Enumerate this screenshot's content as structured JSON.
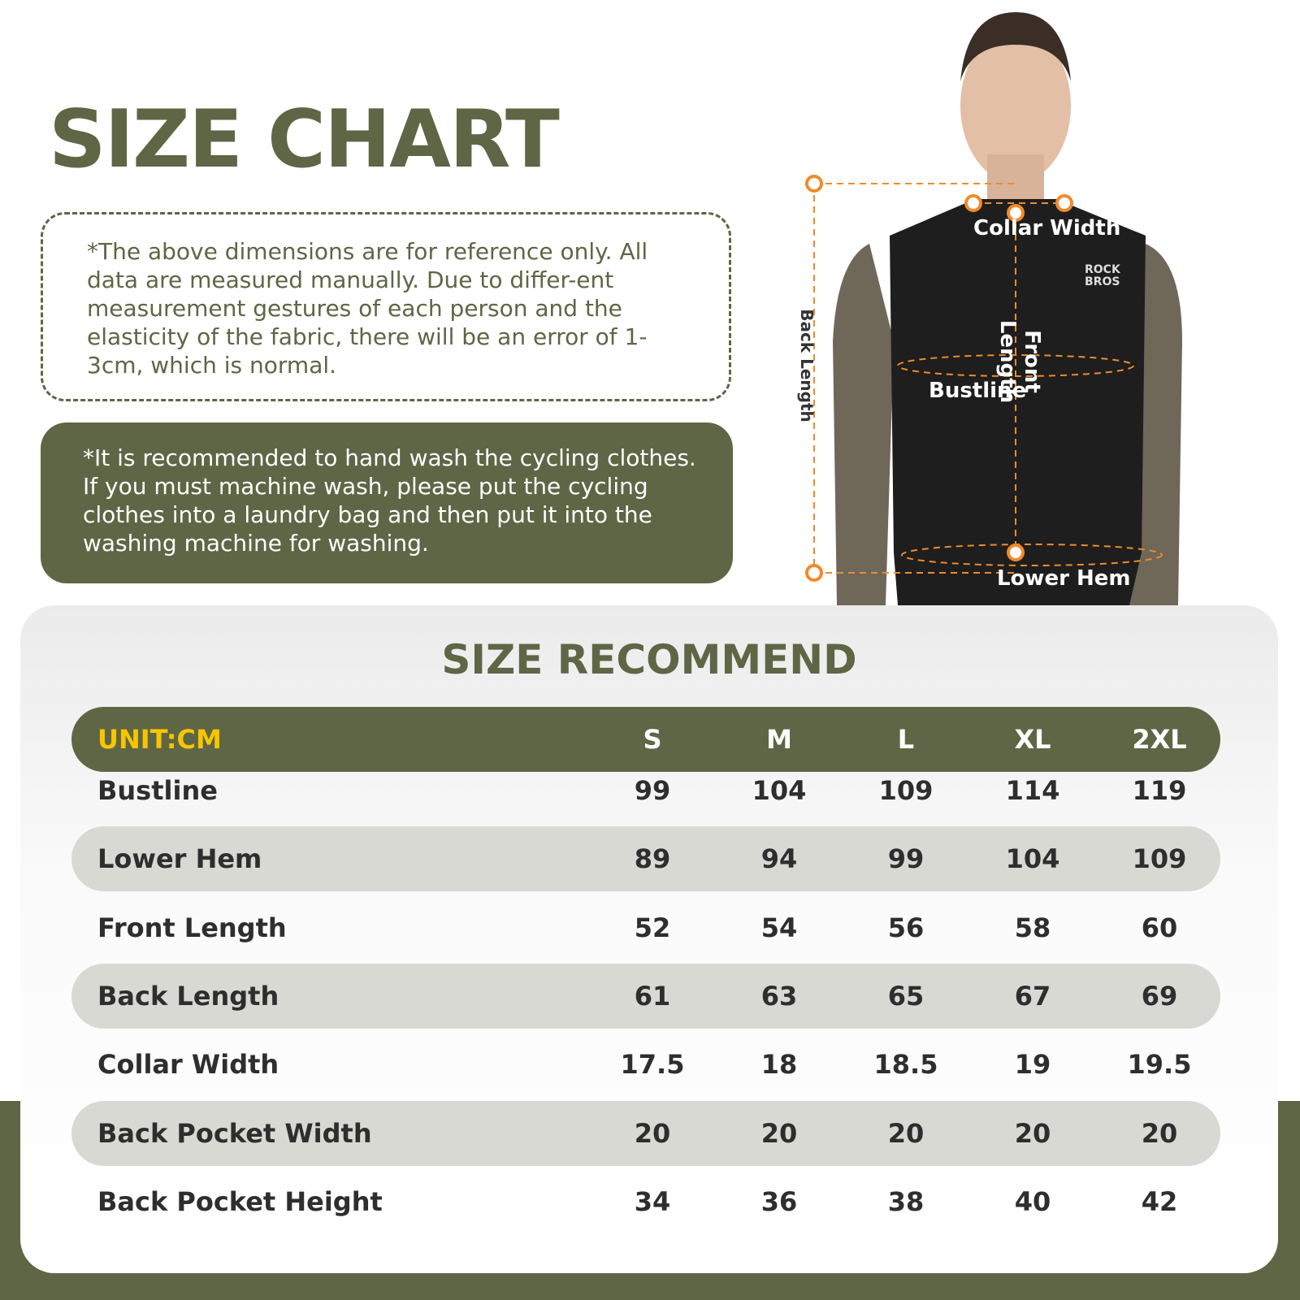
{
  "title": "SIZE CHART",
  "note_reference": "*The above dimensions are for reference only. All data are measured manually. Due to differ-ent measurement gestures of each person and the elasticity of the fabric, there will be an error of 1-3cm, which is normal.",
  "note_wash": "*It is recommended to hand wash the cycling clothes. If you must machine wash, please put the cycling clothes into a laundry bag and then put it into the washing machine for washing.",
  "figure": {
    "collar_width": "Collar Width",
    "front_length": "Front Length",
    "back_length": "Back Length",
    "bustline": "Bustline",
    "lower_hem": "Lower Hem",
    "logo": "ROCK BROS",
    "accent_color": "#f08a2c"
  },
  "table": {
    "title": "SIZE RECOMMEND",
    "unit": "UNIT:CM",
    "sizes": [
      "S",
      "M",
      "L",
      "XL",
      "2XL"
    ],
    "rows": [
      {
        "label": "Bustline",
        "values": [
          "99",
          "104",
          "109",
          "114",
          "119"
        ]
      },
      {
        "label": "Lower Hem",
        "values": [
          "89",
          "94",
          "99",
          "104",
          "109"
        ]
      },
      {
        "label": "Front Length",
        "values": [
          "52",
          "54",
          "56",
          "58",
          "60"
        ]
      },
      {
        "label": "Back Length",
        "values": [
          "61",
          "63",
          "65",
          "67",
          "69"
        ]
      },
      {
        "label": "Collar Width",
        "values": [
          "17.5",
          "18",
          "18.5",
          "19",
          "19.5"
        ]
      },
      {
        "label": "Back Pocket Width",
        "values": [
          "20",
          "20",
          "20",
          "20",
          "20"
        ]
      },
      {
        "label": "Back Pocket Height",
        "values": [
          "34",
          "36",
          "38",
          "40",
          "42"
        ]
      }
    ]
  },
  "colors": {
    "olive": "#5e6645",
    "unit_yellow": "#f7c500",
    "row_alt": "#d9d9d3"
  }
}
